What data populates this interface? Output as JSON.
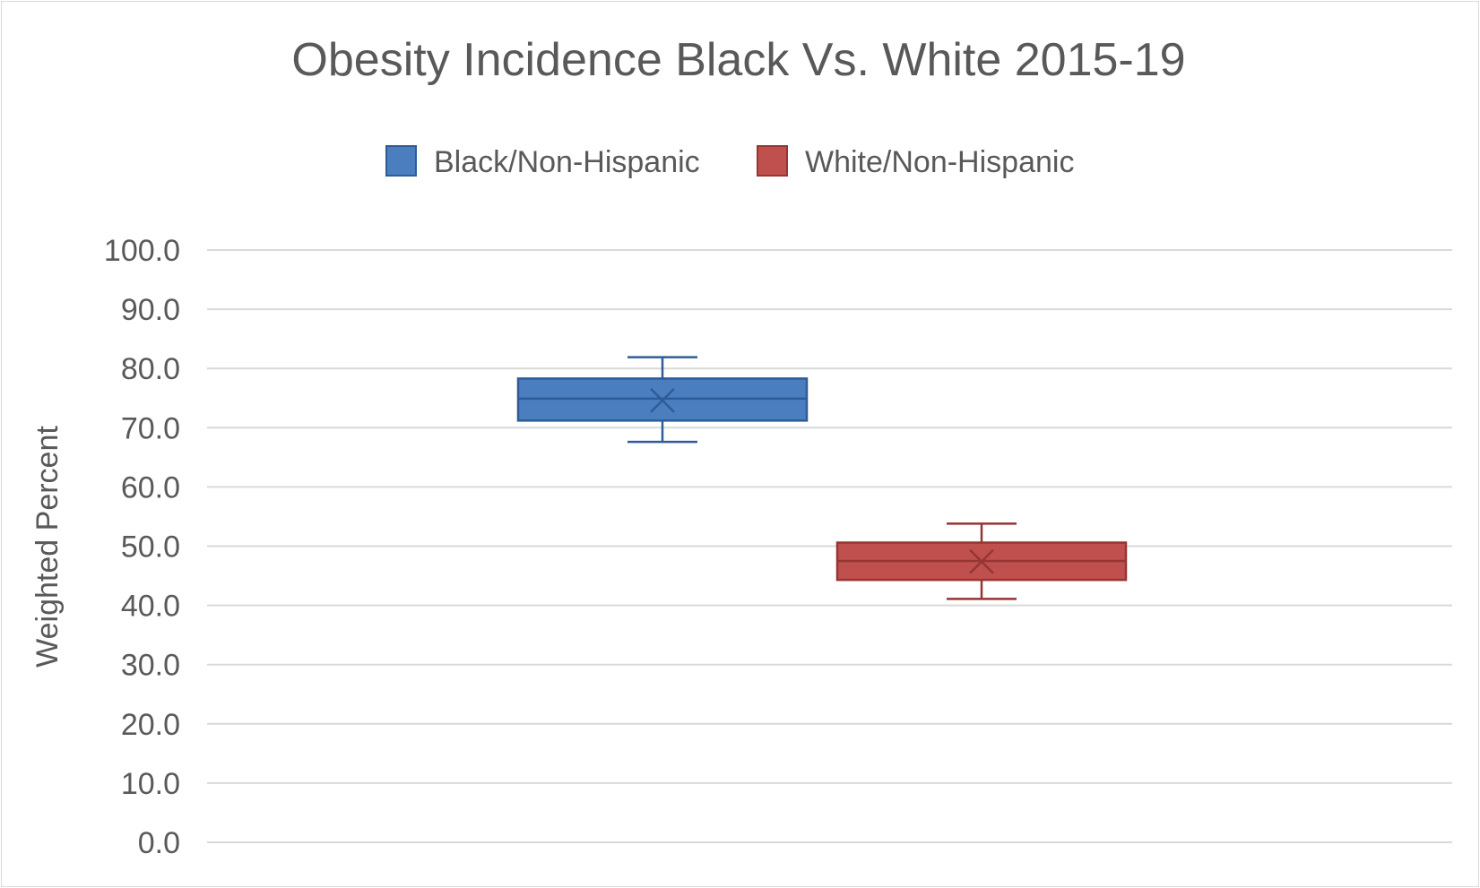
{
  "chart_data": {
    "type": "box",
    "title": "Obesity Incidence Black Vs. White 2015-19",
    "ylabel": "Weighted Percent",
    "xlabel": "",
    "ylim": [
      0,
      100
    ],
    "yticks": [
      0,
      10,
      20,
      30,
      40,
      50,
      60,
      70,
      80,
      90,
      100
    ],
    "ytick_labels": [
      "0.0",
      "10.0",
      "20.0",
      "30.0",
      "40.0",
      "50.0",
      "60.0",
      "70.0",
      "80.0",
      "90.0",
      "100.0"
    ],
    "grid": true,
    "legend_position": "top",
    "series": [
      {
        "name": "Black/Non-Hispanic",
        "color": "#4a7ebf",
        "stroke": "#2e5c99",
        "min": 67.6,
        "q1": 71.2,
        "median": 74.9,
        "q3": 78.3,
        "max": 81.9,
        "mean": 74.6
      },
      {
        "name": "White/Non-Hispanic",
        "color": "#c0504d",
        "stroke": "#943634",
        "min": 41.1,
        "q1": 44.3,
        "median": 47.5,
        "q3": 50.6,
        "max": 53.8,
        "mean": 47.4
      }
    ]
  }
}
